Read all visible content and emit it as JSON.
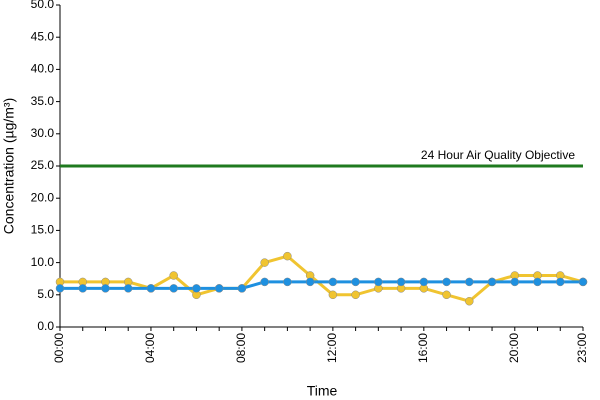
{
  "chart_data": {
    "type": "line",
    "x_label": "Time",
    "y_label": "Concentration (µg/m³)",
    "categories": [
      "00:00",
      null,
      null,
      null,
      "04:00",
      null,
      null,
      null,
      "08:00",
      null,
      null,
      null,
      "12:00",
      null,
      null,
      null,
      "16:00",
      null,
      null,
      null,
      "20:00",
      null,
      null,
      "23:00"
    ],
    "series": [
      {
        "color": "#f0c430",
        "values": [
          7,
          7,
          7,
          7,
          6,
          8,
          5,
          6,
          6,
          10,
          11,
          8,
          5,
          5,
          6,
          6,
          6,
          5,
          4,
          7,
          8,
          8,
          8,
          7
        ]
      },
      {
        "color": "#1e90e0",
        "values": [
          6,
          6,
          6,
          6,
          6,
          6,
          6,
          6,
          6,
          7,
          7,
          7,
          7,
          7,
          7,
          7,
          7,
          7,
          7,
          7,
          7,
          7,
          7,
          7
        ]
      }
    ],
    "reference_line": {
      "value": 25,
      "label": "24 Hour Air Quality Objective",
      "color": "#1f7a1f"
    },
    "ylim": [
      0,
      50
    ],
    "yticks": [
      {
        "value": 0,
        "label": "0.0"
      },
      {
        "value": 5,
        "label": "5.0"
      },
      {
        "value": 10,
        "label": "10.0"
      },
      {
        "value": 15,
        "label": "15.0"
      },
      {
        "value": 20,
        "label": "20.0"
      },
      {
        "value": 25,
        "label": "25.0"
      },
      {
        "value": 30,
        "label": "30.0"
      },
      {
        "value": 35,
        "label": "35.0"
      },
      {
        "value": 40,
        "label": "40.0"
      },
      {
        "value": 45,
        "label": "45.0"
      },
      {
        "value": 50,
        "label": "50.0"
      }
    ]
  }
}
